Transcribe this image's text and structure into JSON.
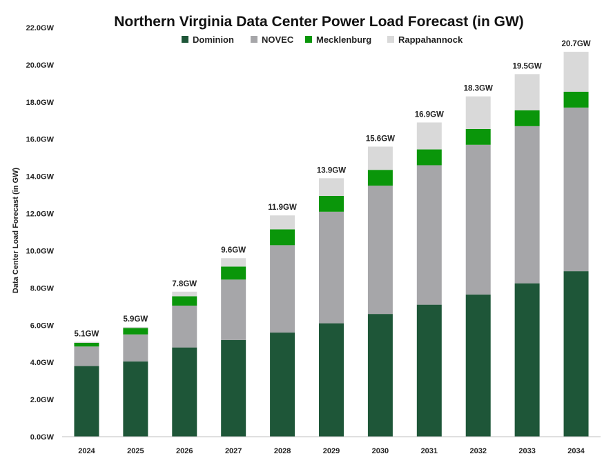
{
  "chart_data": {
    "type": "bar",
    "stacked": true,
    "title": "Northern Virginia Data Center Power Load Forecast (in GW)",
    "xlabel": "",
    "ylabel": "Data Center Load Forecast (in GW)",
    "ylim": [
      0,
      22
    ],
    "yticks": [
      0,
      2,
      4,
      6,
      8,
      10,
      12,
      14,
      16,
      18,
      20,
      22
    ],
    "ytick_labels": [
      "0.0GW",
      "2.0GW",
      "4.0GW",
      "6.0GW",
      "8.0GW",
      "10.0GW",
      "12.0GW",
      "14.0GW",
      "16.0GW",
      "18.0GW",
      "20.0GW",
      "22.0GW"
    ],
    "legend_position": "top-center",
    "categories": [
      "2024",
      "2025",
      "2026",
      "2027",
      "2028",
      "2029",
      "2030",
      "2031",
      "2032",
      "2033",
      "2034"
    ],
    "series": [
      {
        "name": "Dominion",
        "color": "#1e5638",
        "values": [
          3.8,
          4.05,
          4.8,
          5.2,
          5.6,
          6.1,
          6.6,
          7.1,
          7.65,
          8.25,
          8.9
        ]
      },
      {
        "name": "NOVEC",
        "color": "#a6a6a9",
        "values": [
          1.05,
          1.45,
          2.25,
          3.25,
          4.7,
          6.0,
          6.9,
          7.5,
          8.05,
          8.45,
          8.8
        ]
      },
      {
        "name": "Mecklenburg",
        "color": "#0a960a",
        "values": [
          0.2,
          0.35,
          0.5,
          0.7,
          0.85,
          0.85,
          0.85,
          0.85,
          0.85,
          0.85,
          0.85
        ]
      },
      {
        "name": "Rappahannock",
        "color": "#d9d9d9",
        "values": [
          0.05,
          0.05,
          0.25,
          0.45,
          0.75,
          0.95,
          1.25,
          1.45,
          1.75,
          1.95,
          2.15
        ]
      }
    ],
    "totals": [
      "5.1GW",
      "5.9GW",
      "7.8GW",
      "9.6GW",
      "11.9GW",
      "13.9GW",
      "15.6GW",
      "16.9GW",
      "18.3GW",
      "19.5GW",
      "20.7GW"
    ]
  }
}
